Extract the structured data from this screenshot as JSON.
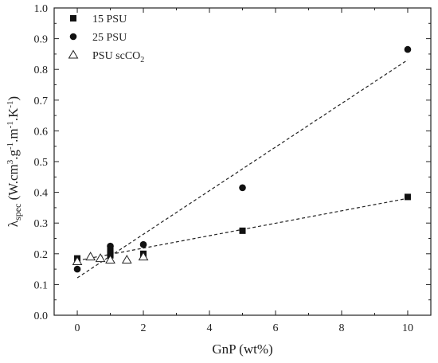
{
  "chart_data": {
    "type": "scatter",
    "xlabel": "GnP (wt%)",
    "ylabel": {
      "main": "λ",
      "sub": "spec",
      "rest_parts": [
        {
          "t": " (W.cm",
          "s": "n"
        },
        {
          "t": "3",
          "s": "sup"
        },
        {
          "t": ".g",
          "s": "n"
        },
        {
          "t": "-1",
          "s": "sup"
        },
        {
          "t": ".m",
          "s": "n"
        },
        {
          "t": "-1",
          "s": "sup"
        },
        {
          "t": ".K",
          "s": "n"
        },
        {
          "t": "-1",
          "s": "sup"
        },
        {
          "t": ")",
          "s": "n"
        }
      ]
    },
    "xlim": [
      -0.7,
      10.7
    ],
    "ylim": [
      0.0,
      1.0
    ],
    "xticks": [
      0,
      2,
      4,
      6,
      8,
      10
    ],
    "yticks": [
      0.0,
      0.1,
      0.2,
      0.3,
      0.4,
      0.5,
      0.6,
      0.7,
      0.8,
      0.9,
      1.0
    ],
    "xtick_labels": [
      "0",
      "2",
      "4",
      "6",
      "8",
      "10"
    ],
    "ytick_labels": [
      "0.0",
      "0.1",
      "0.2",
      "0.3",
      "0.4",
      "0.5",
      "0.6",
      "0.7",
      "0.8",
      "0.9",
      "1.0"
    ],
    "grid": false,
    "legend_position": "top-left",
    "series": [
      {
        "name": "15 PSU",
        "marker": "filled-square",
        "color": "#111111",
        "fit_line": "dashed",
        "x": [
          0,
          1,
          1,
          1,
          2,
          5,
          10
        ],
        "y": [
          0.185,
          0.21,
          0.2,
          0.195,
          0.2,
          0.275,
          0.385
        ]
      },
      {
        "name": "25 PSU",
        "marker": "filled-circle",
        "color": "#111111",
        "fit_line": "dashed",
        "x": [
          0,
          1,
          2,
          5,
          10
        ],
        "y": [
          0.15,
          0.225,
          0.23,
          0.415,
          0.865
        ]
      },
      {
        "name": "PSU scCO",
        "name_sub": "2",
        "marker": "open-triangle",
        "color": "#111111",
        "fit_line": "none",
        "x": [
          0,
          0.4,
          0.7,
          1,
          1.5,
          2
        ],
        "y": [
          0.175,
          0.19,
          0.185,
          0.18,
          0.18,
          0.19
        ]
      }
    ]
  }
}
